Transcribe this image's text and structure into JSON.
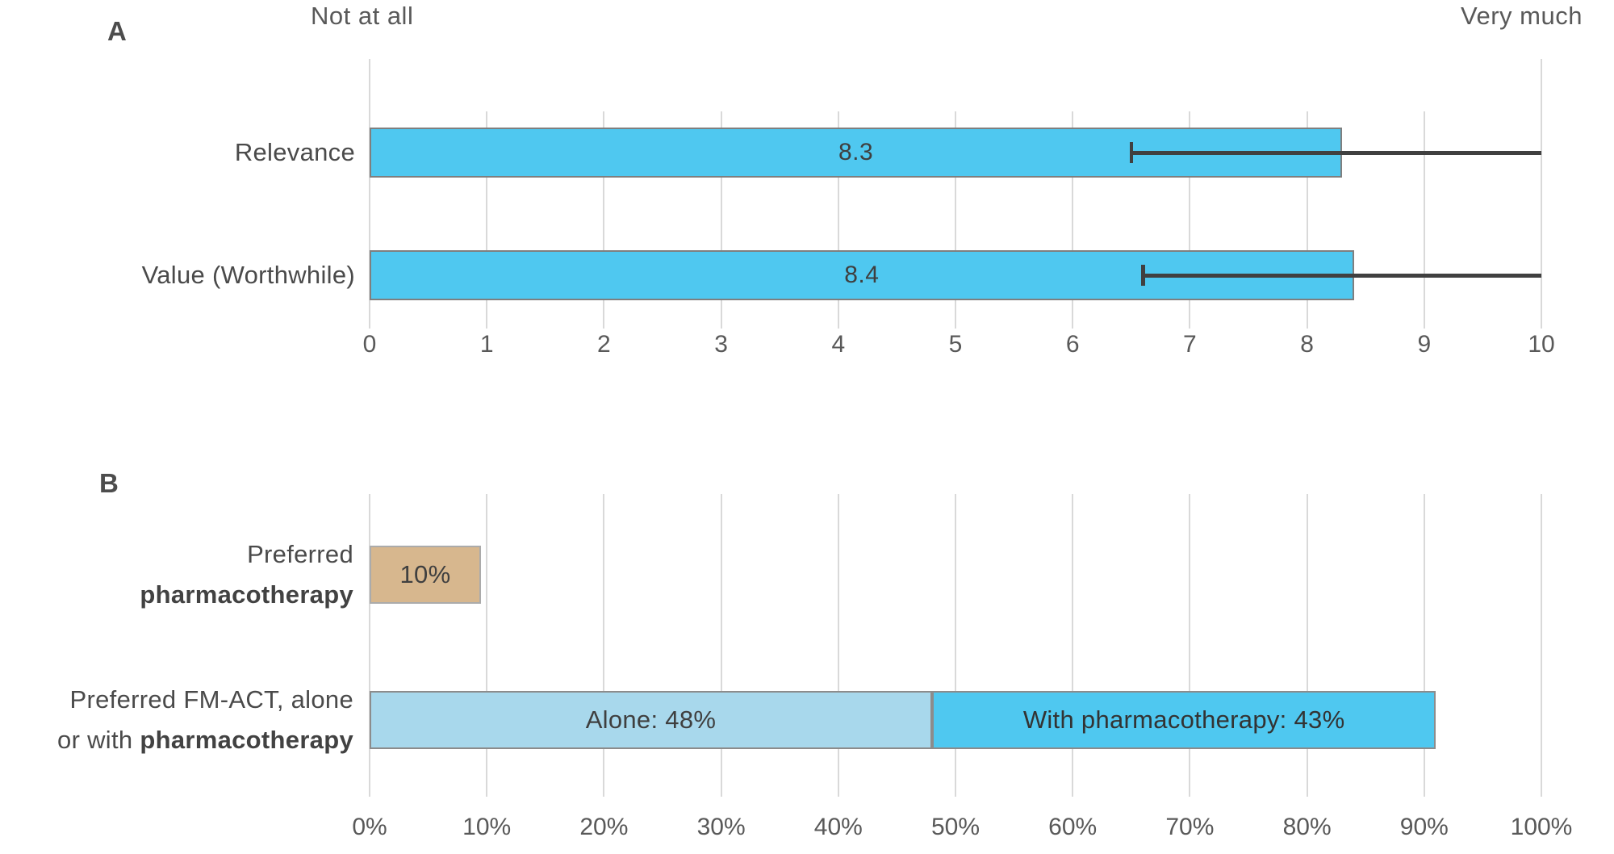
{
  "panels": {
    "a": {
      "corner_label": "A",
      "anchor_left": "Not at all",
      "anchor_right": "Very much"
    },
    "b": {
      "corner_label": "B"
    }
  },
  "colors": {
    "bar_cyan": "#4fc8f0",
    "bar_light_blue": "#a8d8ec",
    "bar_tan": "#d7b78e",
    "bar_border_gray": "#7f7f7f",
    "segment_border_gray": "#8c8c8c",
    "tan_border": "#ababab",
    "gridline": "#d9d9d9",
    "error_bar": "#404040",
    "axis_text": "#595959",
    "label_text": "#4a4a4a"
  },
  "chart_data": [
    {
      "panel": "A",
      "type": "bar",
      "orientation": "horizontal",
      "categories": [
        "Relevance",
        "Value (Worthwhile)"
      ],
      "values": [
        8.3,
        8.4
      ],
      "value_labels": [
        "8.3",
        "8.4"
      ],
      "error_bars": [
        [
          6.5,
          10.0
        ],
        [
          6.6,
          10.0
        ]
      ],
      "xlim": [
        0,
        10
      ],
      "xticks": [
        "0",
        "1",
        "2",
        "3",
        "4",
        "5",
        "6",
        "7",
        "8",
        "9",
        "10"
      ],
      "scale_anchors": {
        "left": "Not at all",
        "right": "Very much"
      },
      "grid": true,
      "legend": "none",
      "bar_color": "#4fc8f0",
      "bar_border": "#7f7f7f",
      "errorbar_color": "#404040"
    },
    {
      "panel": "B",
      "type": "stacked-bar",
      "orientation": "horizontal",
      "xlim": [
        0,
        100
      ],
      "xticks": [
        "0%",
        "10%",
        "20%",
        "30%",
        "40%",
        "50%",
        "60%",
        "70%",
        "80%",
        "90%",
        "100%"
      ],
      "grid": true,
      "legend": "none",
      "rows": [
        {
          "label_lines": [
            [
              {
                "text": "Preferred",
                "bold": false
              }
            ],
            [
              {
                "text": "pharmacotherapy",
                "bold": true
              }
            ]
          ],
          "segments": [
            {
              "label": "10%",
              "value": 10,
              "drawn_value": 9.5,
              "color": "#d7b78e",
              "border": "#ababab",
              "label_color": "#404040"
            }
          ]
        },
        {
          "label_lines": [
            [
              {
                "text": "Preferred FM-ACT, alone",
                "bold": false
              }
            ],
            [
              {
                "text": "or with ",
                "bold": false
              },
              {
                "text": "pharmacotherapy",
                "bold": true
              }
            ]
          ],
          "segments": [
            {
              "label": "Alone: 48%",
              "value": 48,
              "drawn_value": 48,
              "color": "#a8d8ec",
              "border": "#8c8c8c",
              "label_color": "#3f3f3f"
            },
            {
              "label": "With pharmacotherapy: 43%",
              "value": 43,
              "drawn_value": 43,
              "color": "#4fc8f0",
              "border": "#8c8c8c",
              "label_color": "#333333"
            }
          ]
        }
      ]
    }
  ]
}
